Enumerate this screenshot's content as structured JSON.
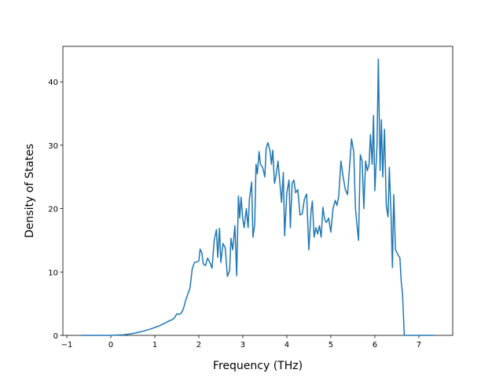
{
  "chart_data": {
    "type": "line",
    "xlabel": "Frequency (THz)",
    "ylabel": "Density of States",
    "xlim": [
      -1.09,
      7.77
    ],
    "ylim": [
      0,
      45.6
    ],
    "xticks": [
      {
        "value": -1,
        "label": "−1"
      },
      0,
      1,
      2,
      3,
      4,
      5,
      6,
      7
    ],
    "yticks": [
      0,
      10,
      20,
      30,
      40
    ],
    "series": [
      {
        "color": "#1f77b4",
        "x": [
          -0.68,
          0,
          0.3,
          0.5,
          0.7,
          0.9,
          1.1,
          1.25,
          1.3,
          1.4,
          1.45,
          1.5,
          1.55,
          1.6,
          1.65,
          1.7,
          1.75,
          1.8,
          1.85,
          1.9,
          1.95,
          2.0,
          2.03,
          2.07,
          2.1,
          2.15,
          2.2,
          2.25,
          2.3,
          2.35,
          2.4,
          2.43,
          2.47,
          2.5,
          2.55,
          2.6,
          2.65,
          2.7,
          2.73,
          2.77,
          2.82,
          2.86,
          2.9,
          2.93,
          2.96,
          3.0,
          3.03,
          3.08,
          3.12,
          3.15,
          3.2,
          3.23,
          3.27,
          3.3,
          3.33,
          3.37,
          3.4,
          3.45,
          3.5,
          3.53,
          3.57,
          3.62,
          3.65,
          3.68,
          3.72,
          3.75,
          3.8,
          3.83,
          3.88,
          3.92,
          3.95,
          4.0,
          4.05,
          4.08,
          4.12,
          4.16,
          4.2,
          4.25,
          4.3,
          4.35,
          4.4,
          4.45,
          4.5,
          4.55,
          4.58,
          4.62,
          4.66,
          4.7,
          4.74,
          4.78,
          4.82,
          4.86,
          4.9,
          4.95,
          5.0,
          5.05,
          5.1,
          5.14,
          5.18,
          5.23,
          5.28,
          5.33,
          5.38,
          5.43,
          5.47,
          5.52,
          5.56,
          5.6,
          5.63,
          5.67,
          5.71,
          5.75,
          5.79,
          5.83,
          5.87,
          5.9,
          5.94,
          5.97,
          6.0,
          6.05,
          6.08,
          6.12,
          6.15,
          6.18,
          6.22,
          6.26,
          6.3,
          6.33,
          6.37,
          6.4,
          6.43,
          6.47,
          6.52,
          6.57,
          6.6,
          6.63,
          6.67,
          7.35
        ],
        "values": [
          0,
          0,
          0.1,
          0.3,
          0.6,
          1.0,
          1.5,
          2.0,
          2.2,
          2.5,
          2.8,
          3.4,
          3.3,
          3.5,
          4.2,
          5.5,
          6.5,
          7.5,
          10.5,
          11.5,
          11.6,
          11.7,
          13.6,
          13.0,
          11.3,
          11.0,
          12.2,
          11.5,
          10.6,
          15.0,
          16.7,
          12.3,
          16.9,
          11.5,
          14.5,
          13.8,
          9.3,
          10.2,
          15.3,
          13.5,
          17.3,
          9.4,
          22.0,
          18.5,
          21.8,
          18.3,
          17.0,
          20.0,
          17.0,
          21.5,
          24.2,
          15.5,
          17.5,
          27.0,
          25.5,
          29.0,
          27.0,
          26.5,
          25.0,
          29.5,
          30.4,
          29.0,
          27.0,
          29.2,
          24.0,
          25.0,
          27.5,
          25.0,
          21.0,
          25.7,
          15.7,
          22.5,
          24.5,
          17.0,
          24.0,
          24.5,
          22.5,
          23.0,
          19.0,
          19.2,
          21.5,
          22.3,
          13.5,
          19.5,
          21.2,
          15.5,
          17.0,
          16.0,
          17.3,
          15.5,
          20.2,
          18.3,
          17.8,
          18.5,
          16.3,
          20.0,
          21.3,
          20.5,
          22.0,
          27.5,
          25.0,
          23.0,
          22.2,
          27.0,
          31.0,
          29.0,
          20.0,
          17.0,
          15.0,
          28.5,
          27.5,
          20.0,
          27.5,
          26.0,
          27.0,
          31.7,
          27.0,
          34.7,
          22.8,
          30.0,
          43.6,
          26.0,
          34.0,
          25.0,
          32.5,
          20.5,
          18.7,
          26.5,
          18.7,
          10.7,
          22.2,
          13.5,
          12.8,
          12.2,
          8.5,
          6.5,
          0,
          0
        ]
      }
    ]
  }
}
